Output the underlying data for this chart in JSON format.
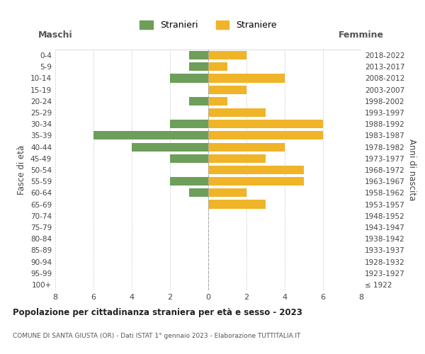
{
  "age_groups": [
    "100+",
    "95-99",
    "90-94",
    "85-89",
    "80-84",
    "75-79",
    "70-74",
    "65-69",
    "60-64",
    "55-59",
    "50-54",
    "45-49",
    "40-44",
    "35-39",
    "30-34",
    "25-29",
    "20-24",
    "15-19",
    "10-14",
    "5-9",
    "0-4"
  ],
  "birth_years": [
    "≤ 1922",
    "1923-1927",
    "1928-1932",
    "1933-1937",
    "1938-1942",
    "1943-1947",
    "1948-1952",
    "1953-1957",
    "1958-1962",
    "1963-1967",
    "1968-1972",
    "1973-1977",
    "1978-1982",
    "1983-1987",
    "1988-1992",
    "1993-1997",
    "1998-2002",
    "2003-2007",
    "2008-2012",
    "2013-2017",
    "2018-2022"
  ],
  "maschi": [
    0,
    0,
    0,
    0,
    0,
    0,
    0,
    0,
    1,
    2,
    0,
    2,
    4,
    6,
    2,
    0,
    1,
    0,
    2,
    1,
    1
  ],
  "femmine": [
    0,
    0,
    0,
    0,
    0,
    0,
    0,
    3,
    2,
    5,
    5,
    3,
    4,
    6,
    6,
    3,
    1,
    2,
    4,
    1,
    2
  ],
  "color_maschi": "#6d9e5a",
  "color_femmine": "#f0b429",
  "title": "Popolazione per cittadinanza straniera per età e sesso - 2023",
  "subtitle": "COMUNE DI SANTA GIUSTA (OR) - Dati ISTAT 1° gennaio 2023 - Elaborazione TUTTITALIA.IT",
  "xlabel_left": "Maschi",
  "xlabel_right": "Femmine",
  "ylabel_left": "Fasce di età",
  "ylabel_right": "Anni di nascita",
  "legend_maschi": "Stranieri",
  "legend_femmine": "Straniere",
  "xlim": 8,
  "background_color": "#ffffff",
  "grid_color": "#cccccc"
}
